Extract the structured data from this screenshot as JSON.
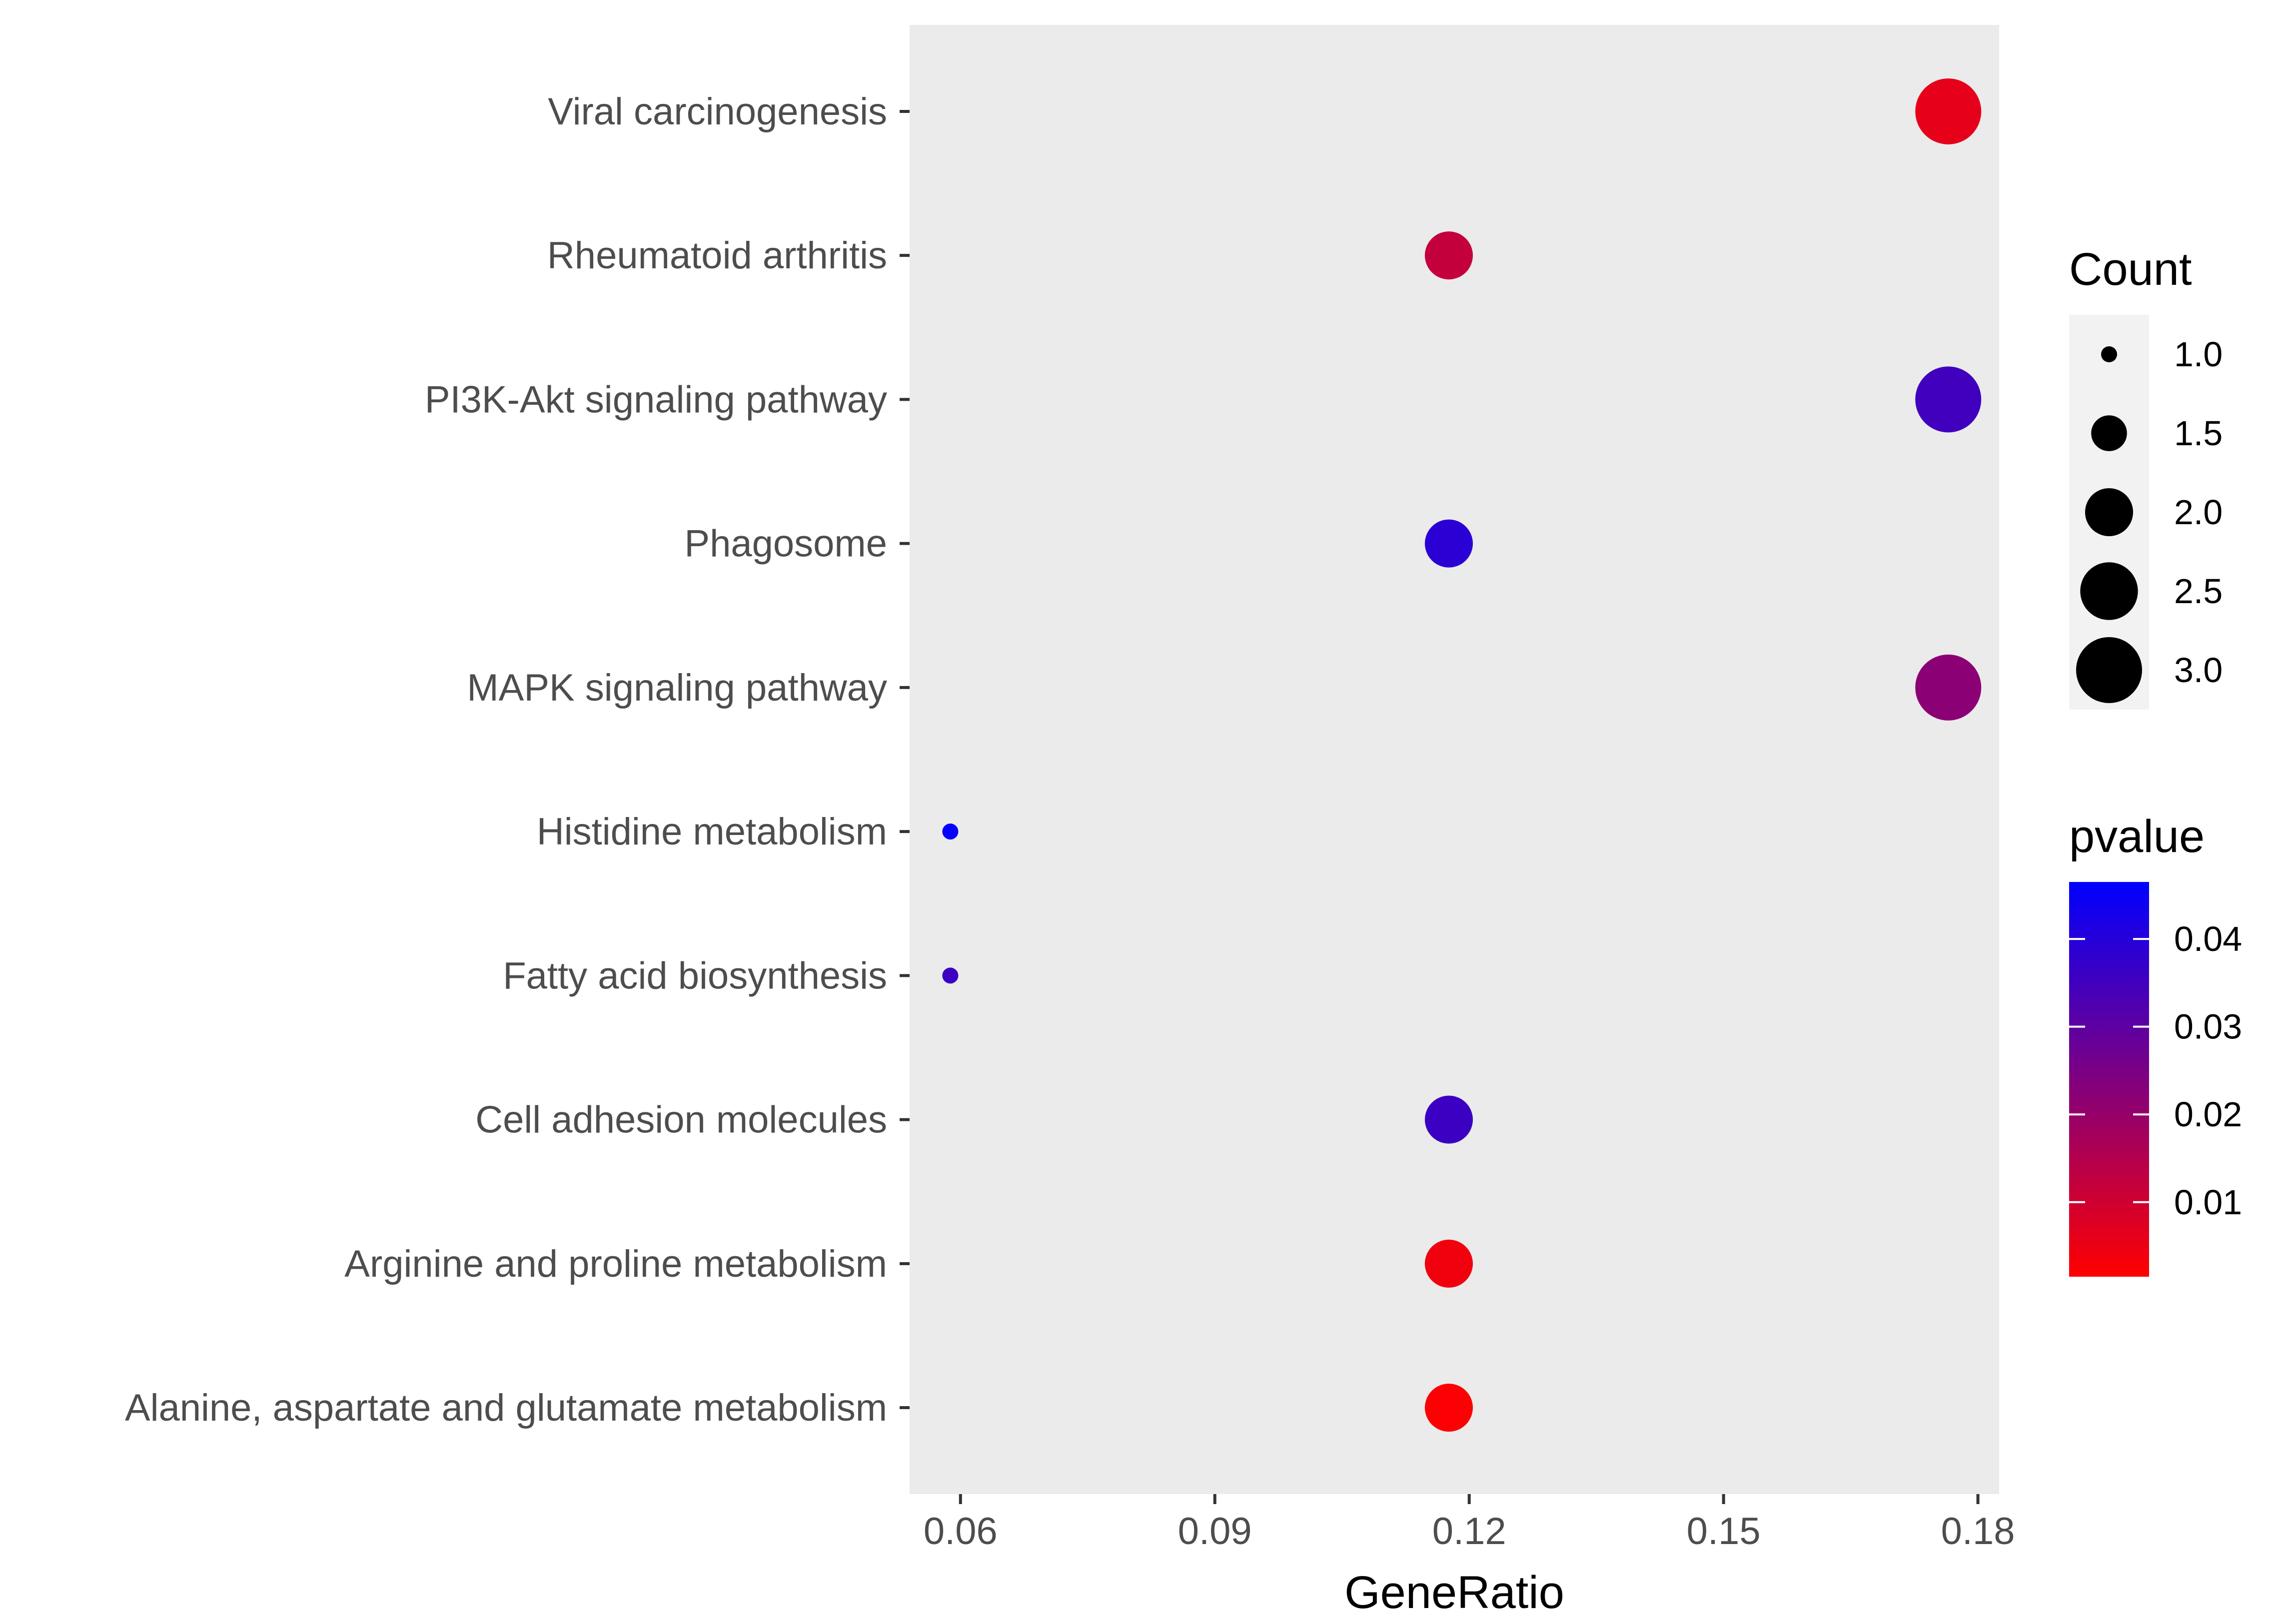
{
  "chart_data": {
    "type": "scatter",
    "xlabel": "GeneRatio",
    "ylabel": "",
    "xlim": [
      0.054,
      0.1825
    ],
    "x_ticks": [
      0.06,
      0.09,
      0.12,
      0.15,
      0.18
    ],
    "x_tick_labels": [
      "0.06",
      "0.09",
      "0.12",
      "0.15",
      "0.18"
    ],
    "categories": [
      "Alanine, aspartate and glutamate metabolism",
      "Arginine and proline metabolism",
      "Cell adhesion molecules",
      "Fatty acid biosynthesis",
      "Histidine metabolism",
      "MAPK signaling pathway",
      "Phagosome",
      "PI3K-Akt signaling pathway",
      "Rheumatoid arthritis",
      "Viral carcinogenesis"
    ],
    "points": [
      {
        "category": "Alanine, aspartate and glutamate metabolism",
        "x": 0.1176,
        "count": 2,
        "pvalue": 0.002
      },
      {
        "category": "Arginine and proline metabolism",
        "x": 0.1176,
        "count": 2,
        "pvalue": 0.004
      },
      {
        "category": "Cell adhesion molecules",
        "x": 0.1176,
        "count": 2,
        "pvalue": 0.036
      },
      {
        "category": "Fatty acid biosynthesis",
        "x": 0.0588,
        "count": 1,
        "pvalue": 0.036
      },
      {
        "category": "Histidine metabolism",
        "x": 0.0588,
        "count": 1,
        "pvalue": 0.046
      },
      {
        "category": "MAPK signaling pathway",
        "x": 0.1765,
        "count": 3,
        "pvalue": 0.022
      },
      {
        "category": "Phagosome",
        "x": 0.1176,
        "count": 2,
        "pvalue": 0.039
      },
      {
        "category": "PI3K-Akt signaling pathway",
        "x": 0.1765,
        "count": 3,
        "pvalue": 0.035
      },
      {
        "category": "Rheumatoid arthritis",
        "x": 0.1176,
        "count": 2,
        "pvalue": 0.012
      },
      {
        "category": "Viral carcinogenesis",
        "x": 0.1765,
        "count": 3,
        "pvalue": 0.006
      }
    ],
    "size_legend": {
      "title": "Count",
      "values": [
        1.0,
        1.5,
        2.0,
        2.5,
        3.0
      ],
      "labels": [
        "1.0",
        "1.5",
        "2.0",
        "2.5",
        "3.0"
      ]
    },
    "color_legend": {
      "title": "pvalue",
      "range": [
        0.0015,
        0.0465
      ],
      "ticks": [
        0.01,
        0.02,
        0.03,
        0.04
      ],
      "labels": [
        "0.01",
        "0.02",
        "0.03",
        "0.04"
      ],
      "low_color": "#ff0000",
      "high_color": "#0000ff"
    },
    "panel_background": "#ebebeb",
    "legend_key_background": "#f2f2f2",
    "grid": false,
    "legend_position": "right"
  }
}
